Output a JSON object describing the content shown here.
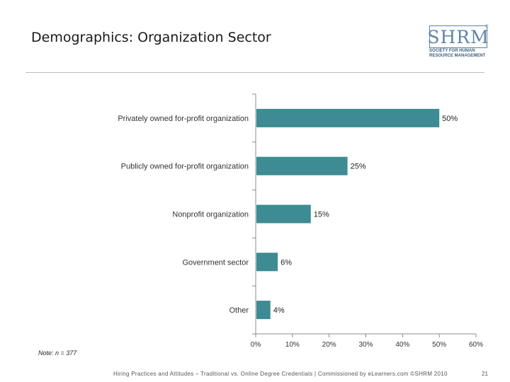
{
  "header": {
    "title": "Demographics: Organization Sector"
  },
  "logo": {
    "letters": "SHRM",
    "registered": "®",
    "tagline_line1": "SOCIETY FOR HUMAN",
    "tagline_line2": "RESOURCE MANAGEMENT",
    "color": "#5c84a8"
  },
  "chart_data": {
    "type": "bar",
    "orientation": "horizontal",
    "categories": [
      "Privately owned for-profit organization",
      "Publicly owned for-profit organization",
      "Nonprofit organization",
      "Government sector",
      "Other"
    ],
    "values": [
      50,
      25,
      15,
      6,
      4
    ],
    "data_labels": [
      "50%",
      "25%",
      "15%",
      "6%",
      "4%"
    ],
    "xlim": [
      0,
      60
    ],
    "x_ticks": [
      0,
      10,
      20,
      30,
      40,
      50,
      60
    ],
    "x_tick_labels": [
      "0%",
      "10%",
      "20%",
      "30%",
      "40%",
      "50%",
      "60%"
    ],
    "bar_color": "#3d8b93",
    "grid": false
  },
  "note": "Note: n = 377",
  "footer": {
    "text": "Hiring Practices and Attitudes – Traditional vs. Online Degree Credentials | Commissioned by eLearners.com ©SHRM 2010",
    "page_number": "21"
  }
}
